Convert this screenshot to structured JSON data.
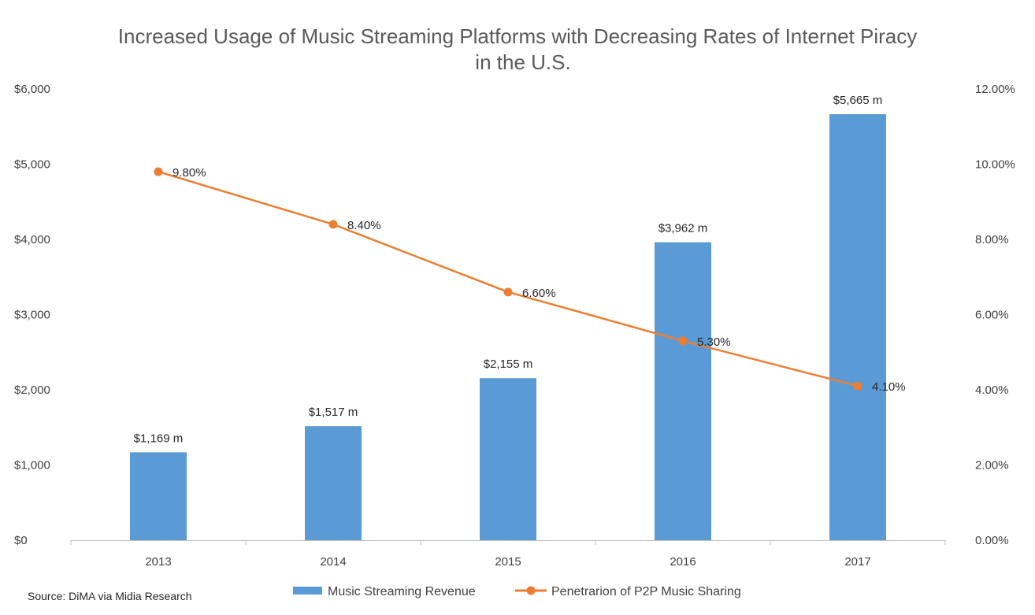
{
  "chart_data": {
    "type": "bar",
    "title_lines": [
      "Increased Usage of Music Streaming Platforms with Decreasing Rates of Internet Piracy",
      "in the U.S."
    ],
    "categories": [
      "2013",
      "2014",
      "2015",
      "2016",
      "2017"
    ],
    "series": [
      {
        "name": "Music Streaming Revenue",
        "type": "bar",
        "axis": "left",
        "color": "#5b9bd5",
        "values": [
          1169,
          1517,
          2155,
          3962,
          5665
        ],
        "labels": [
          "$1,169 m",
          "$1,517 m",
          "$2,155 m",
          "$3,962 m",
          "$5,665 m"
        ]
      },
      {
        "name": "Penetrarion of P2P Music Sharing",
        "type": "line",
        "axis": "right",
        "color": "#ed7d31",
        "values": [
          9.8,
          8.4,
          6.6,
          5.3,
          4.1
        ],
        "labels": [
          "9.80%",
          "8.40%",
          "6.60%",
          "5.30%",
          "4.10%"
        ]
      }
    ],
    "y_left": {
      "min": 0,
      "max": 6000,
      "ticks": [
        0,
        1000,
        2000,
        3000,
        4000,
        5000,
        6000
      ],
      "tick_labels": [
        "$0",
        "$1,000",
        "$2,000",
        "$3,000",
        "$4,000",
        "$5,000",
        "$6,000"
      ]
    },
    "y_right": {
      "min": 0,
      "max": 12,
      "ticks": [
        0,
        2,
        4,
        6,
        8,
        10,
        12
      ],
      "tick_labels": [
        "0.00%",
        "2.00%",
        "4.00%",
        "6.00%",
        "8.00%",
        "10.00%",
        "12.00%"
      ]
    },
    "grid": false,
    "legend_position": "bottom"
  },
  "source": "Source: DiMA via Midia Research"
}
